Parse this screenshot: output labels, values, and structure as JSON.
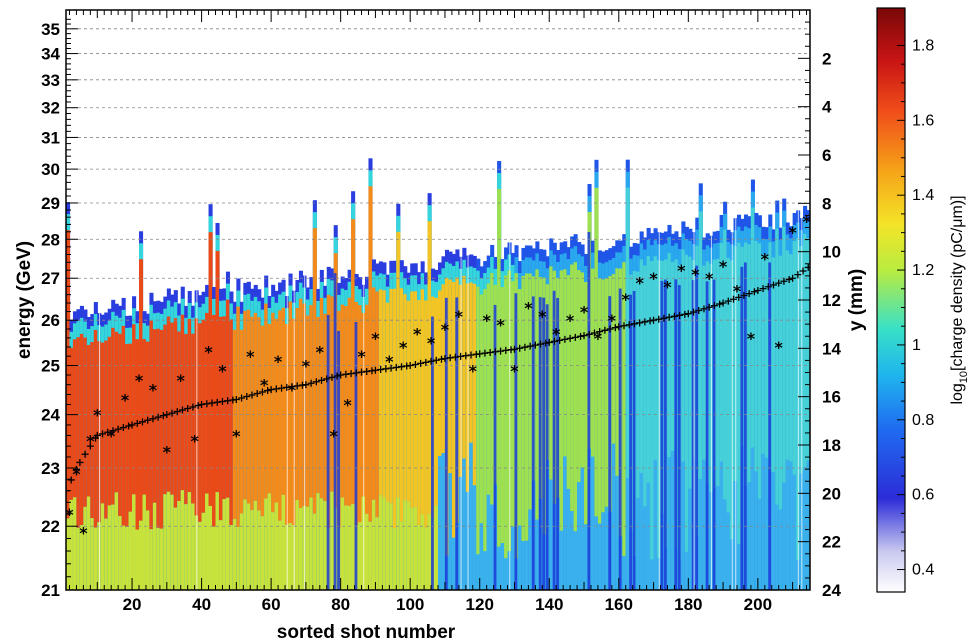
{
  "chart_data": {
    "type": "heatmap",
    "xlabel": "sorted shot number",
    "ylabel_left": "energy (GeV)",
    "ylabel_right": "y (mm)",
    "colorbar_label_prefix": "log",
    "colorbar_label_sub": "10",
    "colorbar_label_rest": "[charge density (pC/μm)]",
    "xlim": [
      1,
      215
    ],
    "ylim_energy": [
      21,
      35.8
    ],
    "y_scale": "reciprocal",
    "ylim_mm": [
      24,
      0
    ],
    "zlim": [
      0.34,
      1.9
    ],
    "grid": "horizontal dashed",
    "x_ticks": [
      "20",
      "40",
      "60",
      "80",
      "100",
      "120",
      "140",
      "160",
      "180",
      "200"
    ],
    "y_ticks_energy": [
      "21",
      "22",
      "23",
      "24",
      "25",
      "26",
      "27",
      "28",
      "29",
      "30",
      "31",
      "32",
      "33",
      "34",
      "35"
    ],
    "y_ticks_mm": [
      "2",
      "4",
      "6",
      "8",
      "10",
      "12",
      "14",
      "16",
      "18",
      "20",
      "22",
      "24"
    ],
    "colorbar_ticks": [
      "0.4",
      "0.6",
      "0.8",
      "1",
      "1.2",
      "1.4",
      "1.6",
      "1.8"
    ],
    "series": [
      {
        "marker": "+",
        "x": [
          1,
          5,
          10,
          20,
          30,
          40,
          50,
          60,
          70,
          80,
          90,
          100,
          110,
          120,
          130,
          140,
          150,
          160,
          170,
          180,
          190,
          200,
          210,
          215
        ],
        "y": [
          22.6,
          23.1,
          23.6,
          23.8,
          24.0,
          24.2,
          24.3,
          24.5,
          24.6,
          24.8,
          24.9,
          25.0,
          25.15,
          25.25,
          25.35,
          25.5,
          25.65,
          25.85,
          26.0,
          26.15,
          26.4,
          26.7,
          27.0,
          27.3
        ]
      },
      {
        "marker": "*",
        "x": [
          2,
          4,
          6,
          8,
          10,
          14,
          18,
          22,
          26,
          30,
          34,
          38,
          42,
          46,
          50,
          54,
          58,
          62,
          66,
          70,
          74,
          78,
          82,
          86,
          90,
          94,
          98,
          102,
          106,
          110,
          114,
          118,
          122,
          126,
          130,
          134,
          138,
          142,
          146,
          150,
          154,
          158,
          162,
          166,
          170,
          174,
          178,
          182,
          186,
          190,
          194,
          198,
          202,
          206,
          210,
          214
        ],
        "y": [
          22.2,
          22.9,
          21.9,
          23.5,
          24.0,
          23.6,
          24.3,
          24.7,
          24.5,
          23.3,
          24.7,
          23.5,
          25.3,
          24.9,
          23.6,
          25.2,
          24.6,
          25.1,
          24.5,
          25.0,
          25.3,
          23.6,
          24.2,
          25.2,
          25.6,
          25.1,
          25.4,
          25.7,
          25.5,
          25.8,
          26.1,
          24.9,
          26.0,
          25.9,
          24.9,
          26.3,
          26.1,
          25.7,
          26.0,
          26.2,
          25.6,
          26.0,
          26.5,
          26.9,
          27.0,
          26.8,
          27.2,
          27.1,
          27.0,
          27.3,
          26.7,
          25.6,
          27.5,
          25.4,
          28.2,
          28.5
        ]
      }
    ]
  }
}
